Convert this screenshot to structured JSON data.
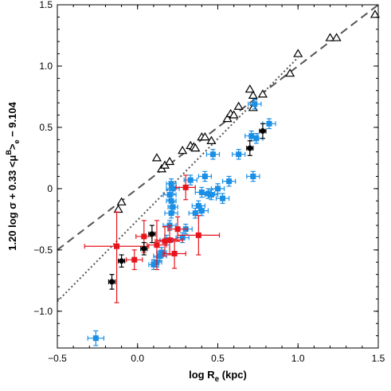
{
  "chart_data": {
    "type": "scatter",
    "title": "",
    "xlabel": "log R_e (kpc)",
    "xlabel_parts": {
      "main": "log R",
      "sub": "e",
      "unit": " (kpc)"
    },
    "ylabel": "1.20 log σ + 0.33 <μ^B>_e − 9.104",
    "ylabel_parts": {
      "a": "1.20 log σ + 0.33 <μ",
      "sup": "B",
      "b": ">",
      "sub": "e",
      "c": " − 9.104"
    },
    "xlim": [
      -0.5,
      1.5
    ],
    "ylim": [
      -1.3,
      1.5
    ],
    "xticks": [
      -0.5,
      0.0,
      0.5,
      1.0,
      1.5
    ],
    "xtick_labels": [
      "−0.5",
      "0.0",
      "0.5",
      "1.0",
      "1.5"
    ],
    "yticks": [
      -1.0,
      -0.5,
      0.0,
      0.5,
      1.0,
      1.5
    ],
    "ytick_labels": [
      "−1.0",
      "−0.5",
      "0",
      "0.5",
      "1.0",
      "1.5"
    ],
    "grid": false,
    "lines": [
      {
        "style": "dashed",
        "color": "#555555",
        "x": [
          -0.5,
          1.5
        ],
        "y": [
          -0.5,
          1.5
        ]
      },
      {
        "style": "dotted",
        "color": "#555555",
        "x": [
          -0.5,
          1.0
        ],
        "y": [
          -0.92,
          1.07
        ]
      }
    ],
    "series": [
      {
        "marker": "open-triangle",
        "color": "#000000",
        "points": [
          [
            -0.12,
            -0.17
          ],
          [
            -0.1,
            -0.11
          ],
          [
            0.12,
            0.25
          ],
          [
            0.15,
            0.16
          ],
          [
            0.17,
            0.19
          ],
          [
            0.2,
            0.22
          ],
          [
            0.28,
            0.31
          ],
          [
            0.33,
            0.35
          ],
          [
            0.35,
            0.34
          ],
          [
            0.36,
            0.33
          ],
          [
            0.4,
            0.42
          ],
          [
            0.42,
            0.42
          ],
          [
            0.46,
            0.39
          ],
          [
            0.56,
            0.57
          ],
          [
            0.58,
            0.61
          ],
          [
            0.6,
            0.6
          ],
          [
            0.63,
            0.67
          ],
          [
            0.7,
            0.81
          ],
          [
            0.72,
            0.76
          ],
          [
            0.72,
            0.66
          ],
          [
            0.78,
            0.77
          ],
          [
            0.95,
            0.94
          ],
          [
            1.0,
            1.1
          ],
          [
            1.2,
            1.23
          ],
          [
            1.24,
            1.23
          ],
          [
            1.48,
            1.42
          ]
        ]
      },
      {
        "marker": "filled-square",
        "color": "#1a8fe6",
        "points": [
          {
            "x": -0.26,
            "y": -1.22,
            "xerr": 0.05,
            "yerr": 0.06
          },
          {
            "x": 0.1,
            "y": -0.62,
            "xerr": 0.03,
            "yerr": 0.04
          },
          {
            "x": 0.12,
            "y": -0.6,
            "xerr": 0.03,
            "yerr": 0.04
          },
          {
            "x": 0.14,
            "y": -0.55,
            "xerr": 0.04,
            "yerr": 0.04
          },
          {
            "x": 0.15,
            "y": -0.52,
            "xerr": 0.03,
            "yerr": 0.04
          },
          {
            "x": 0.18,
            "y": -0.42,
            "xerr": 0.04,
            "yerr": 0.04
          },
          {
            "x": 0.2,
            "y": -0.3,
            "xerr": 0.04,
            "yerr": 0.04
          },
          {
            "x": 0.21,
            "y": -0.2,
            "xerr": 0.04,
            "yerr": 0.04
          },
          {
            "x": 0.22,
            "y": -0.15,
            "xerr": 0.03,
            "yerr": 0.04
          },
          {
            "x": 0.21,
            "y": -0.1,
            "xerr": 0.03,
            "yerr": 0.04
          },
          {
            "x": 0.2,
            "y": -0.05,
            "xerr": 0.04,
            "yerr": 0.04
          },
          {
            "x": 0.22,
            "y": 0.0,
            "xerr": 0.04,
            "yerr": 0.04
          },
          {
            "x": 0.21,
            "y": 0.04,
            "xerr": 0.03,
            "yerr": 0.04
          },
          {
            "x": 0.28,
            "y": -0.4,
            "xerr": 0.04,
            "yerr": 0.04
          },
          {
            "x": 0.3,
            "y": -0.33,
            "xerr": 0.04,
            "yerr": 0.04
          },
          {
            "x": 0.33,
            "y": 0.07,
            "xerr": 0.04,
            "yerr": 0.04
          },
          {
            "x": 0.36,
            "y": -0.2,
            "xerr": 0.04,
            "yerr": 0.04
          },
          {
            "x": 0.38,
            "y": -0.14,
            "xerr": 0.04,
            "yerr": 0.04
          },
          {
            "x": 0.4,
            "y": -0.18,
            "xerr": 0.04,
            "yerr": 0.04
          },
          {
            "x": 0.4,
            "y": -0.03,
            "xerr": 0.04,
            "yerr": 0.04
          },
          {
            "x": 0.42,
            "y": 0.1,
            "xerr": 0.04,
            "yerr": 0.04
          },
          {
            "x": 0.44,
            "y": -0.04,
            "xerr": 0.04,
            "yerr": 0.04
          },
          {
            "x": 0.46,
            "y": -0.05,
            "xerr": 0.04,
            "yerr": 0.04
          },
          {
            "x": 0.47,
            "y": 0.28,
            "xerr": 0.04,
            "yerr": 0.04
          },
          {
            "x": 0.5,
            "y": 0.0,
            "xerr": 0.04,
            "yerr": 0.04
          },
          {
            "x": 0.53,
            "y": -0.08,
            "xerr": 0.04,
            "yerr": 0.04
          },
          {
            "x": 0.57,
            "y": 0.06,
            "xerr": 0.04,
            "yerr": 0.04
          },
          {
            "x": 0.63,
            "y": 0.28,
            "xerr": 0.04,
            "yerr": 0.04
          },
          {
            "x": 0.72,
            "y": 0.1,
            "xerr": 0.04,
            "yerr": 0.04
          },
          {
            "x": 0.71,
            "y": 0.43,
            "xerr": 0.04,
            "yerr": 0.04
          },
          {
            "x": 0.74,
            "y": 0.41,
            "xerr": 0.04,
            "yerr": 0.04
          },
          {
            "x": 0.73,
            "y": 0.69,
            "xerr": 0.04,
            "yerr": 0.04
          },
          {
            "x": 0.82,
            "y": 0.53,
            "xerr": 0.04,
            "yerr": 0.04
          }
        ]
      },
      {
        "marker": "filled-square",
        "color": "#e8141c",
        "points": [
          {
            "x": -0.13,
            "y": -0.47,
            "xerr": 0.2,
            "yerr_low": 0.46,
            "yerr_high": 0.28
          },
          {
            "x": -0.02,
            "y": -0.58,
            "xerr": 0.05,
            "yerr": 0.08
          },
          {
            "x": 0.04,
            "y": -0.39,
            "xerr": 0.05,
            "yerr": 0.13
          },
          {
            "x": 0.12,
            "y": -0.46,
            "xerr": 0.06,
            "yerr": 0.2
          },
          {
            "x": 0.17,
            "y": -0.43,
            "xerr": 0.06,
            "yerr": 0.12
          },
          {
            "x": 0.2,
            "y": -0.42,
            "xerr": 0.08,
            "yerr": 0.12
          },
          {
            "x": 0.23,
            "y": -0.53,
            "xerr": 0.07,
            "yerr": 0.12
          },
          {
            "x": 0.25,
            "y": -0.33,
            "xerr": 0.06,
            "yerr": 0.1
          },
          {
            "x": 0.3,
            "y": 0.01,
            "xerr": 0.06,
            "yerr": 0.1
          },
          {
            "x": 0.38,
            "y": -0.38,
            "xerr": 0.13,
            "yerr": 0.16
          }
        ]
      },
      {
        "marker": "filled-circle",
        "color": "#000000",
        "points": [
          {
            "x": -0.16,
            "y": -0.76,
            "xerr": 0.02,
            "yerr": 0.06
          },
          {
            "x": -0.1,
            "y": -0.59,
            "xerr": 0.02,
            "yerr": 0.05
          },
          {
            "x": 0.04,
            "y": -0.49,
            "xerr": 0.02,
            "yerr": 0.05
          },
          {
            "x": 0.09,
            "y": -0.37,
            "xerr": 0.02,
            "yerr": 0.07
          },
          {
            "x": 0.7,
            "y": 0.33,
            "xerr": 0.02,
            "yerr": 0.06
          },
          {
            "x": 0.78,
            "y": 0.47,
            "xerr": 0.02,
            "yerr": 0.06
          }
        ]
      }
    ]
  }
}
